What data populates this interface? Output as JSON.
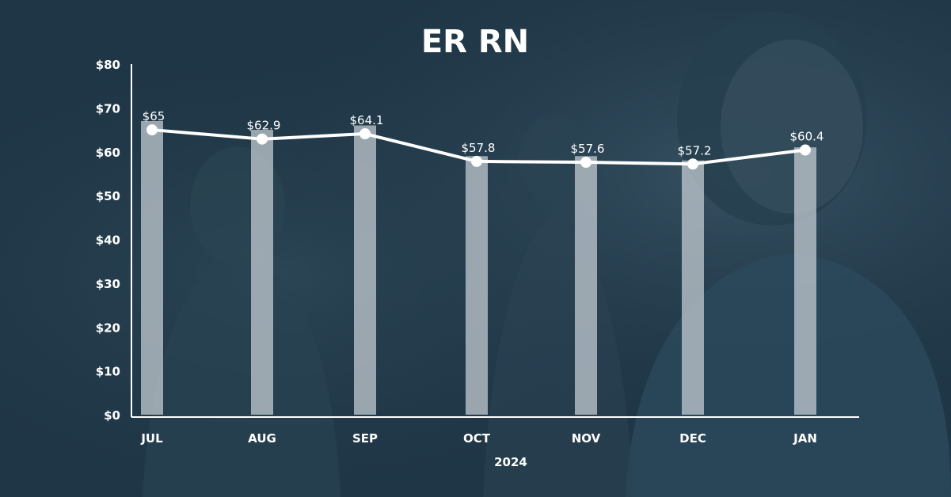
{
  "chart_data": {
    "type": "bar",
    "title": "ER RN",
    "xlabel": "2024",
    "ylabel": "",
    "categories": [
      "JUL",
      "AUG",
      "SEP",
      "OCT",
      "NOV",
      "DEC",
      "JAN"
    ],
    "series": [
      {
        "type": "bar",
        "values": [
          67,
          65,
          66,
          59,
          59,
          58,
          61
        ]
      },
      {
        "type": "line",
        "values": [
          65,
          62.9,
          64.1,
          57.8,
          57.6,
          57.2,
          60.4
        ]
      }
    ],
    "data_labels": [
      "$65",
      "$62.9",
      "$64.1",
      "$57.8",
      "$57.6",
      "$57.2",
      "$60.4"
    ],
    "ylim": [
      0,
      80
    ],
    "yticks": [
      0,
      10,
      20,
      30,
      40,
      50,
      60,
      70,
      80
    ],
    "ytick_labels": [
      "$0",
      "$10",
      "$20",
      "$30",
      "$40",
      "$50",
      "$60",
      "$70",
      "$80"
    ],
    "grid": false,
    "colors": {
      "background": "#1f3646",
      "bar": "#c9d0d5",
      "line": "#ffffff",
      "text": "#ffffff"
    }
  }
}
